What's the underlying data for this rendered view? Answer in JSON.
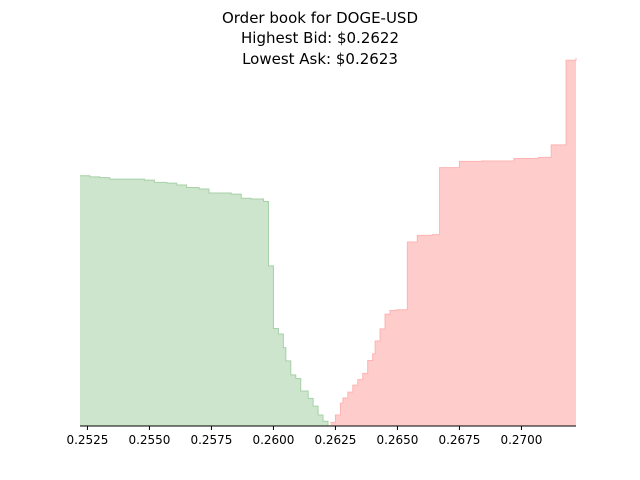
{
  "chart_data": {
    "type": "area",
    "title_lines": [
      "Order book for DOGE-USD",
      "Highest Bid: $0.2622",
      "Lowest Ask: $0.2623"
    ],
    "xlim": [
      0.2522,
      0.2722
    ],
    "ylim": [
      0,
      1.0
    ],
    "y_axis_visible": false,
    "grid": false,
    "x_ticks": [
      0.2525,
      0.255,
      0.2575,
      0.26,
      0.2625,
      0.265,
      0.2675,
      0.27
    ],
    "x_tick_labels": [
      "0.2525",
      "0.2550",
      "0.2575",
      "0.2600",
      "0.2625",
      "0.2650",
      "0.2675",
      "0.2700"
    ],
    "colors": {
      "bid_fill": "#cde4cd",
      "bid_line": "#a6d1a6",
      "ask_fill": "#ffcccc",
      "ask_line": "#ffb3b3",
      "axis": "#000000"
    },
    "series": [
      {
        "side": "bids",
        "x": [
          0.2522,
          0.2526,
          0.253,
          0.2534,
          0.2539,
          0.2548,
          0.2552,
          0.2557,
          0.2561,
          0.2565,
          0.257,
          0.2574,
          0.2583,
          0.2587,
          0.2591,
          0.2596,
          0.2598,
          0.26,
          0.2602,
          0.2604,
          0.2605,
          0.2607,
          0.2609,
          0.2611,
          0.2614,
          0.2616,
          0.2618,
          0.262,
          0.2622
        ],
        "y": [
          0.68,
          0.677,
          0.675,
          0.671,
          0.671,
          0.668,
          0.662,
          0.66,
          0.655,
          0.648,
          0.644,
          0.633,
          0.63,
          0.619,
          0.617,
          0.61,
          0.435,
          0.265,
          0.25,
          0.213,
          0.177,
          0.139,
          0.129,
          0.095,
          0.075,
          0.054,
          0.03,
          0.013,
          0.0
        ]
      },
      {
        "side": "asks",
        "x": [
          0.2623,
          0.2625,
          0.2627,
          0.2628,
          0.263,
          0.2632,
          0.2634,
          0.2636,
          0.2638,
          0.264,
          0.2641,
          0.2643,
          0.2645,
          0.2647,
          0.2649,
          0.265,
          0.2654,
          0.2658,
          0.2664,
          0.2667,
          0.2675,
          0.2684,
          0.2697,
          0.2707,
          0.2712,
          0.2718,
          0.2722
        ],
        "y": [
          0.01,
          0.03,
          0.062,
          0.076,
          0.092,
          0.111,
          0.126,
          0.143,
          0.178,
          0.196,
          0.231,
          0.264,
          0.304,
          0.314,
          0.315,
          0.316,
          0.5,
          0.518,
          0.52,
          0.702,
          0.719,
          0.72,
          0.727,
          0.73,
          0.764,
          0.994,
          1.0
        ]
      }
    ]
  }
}
